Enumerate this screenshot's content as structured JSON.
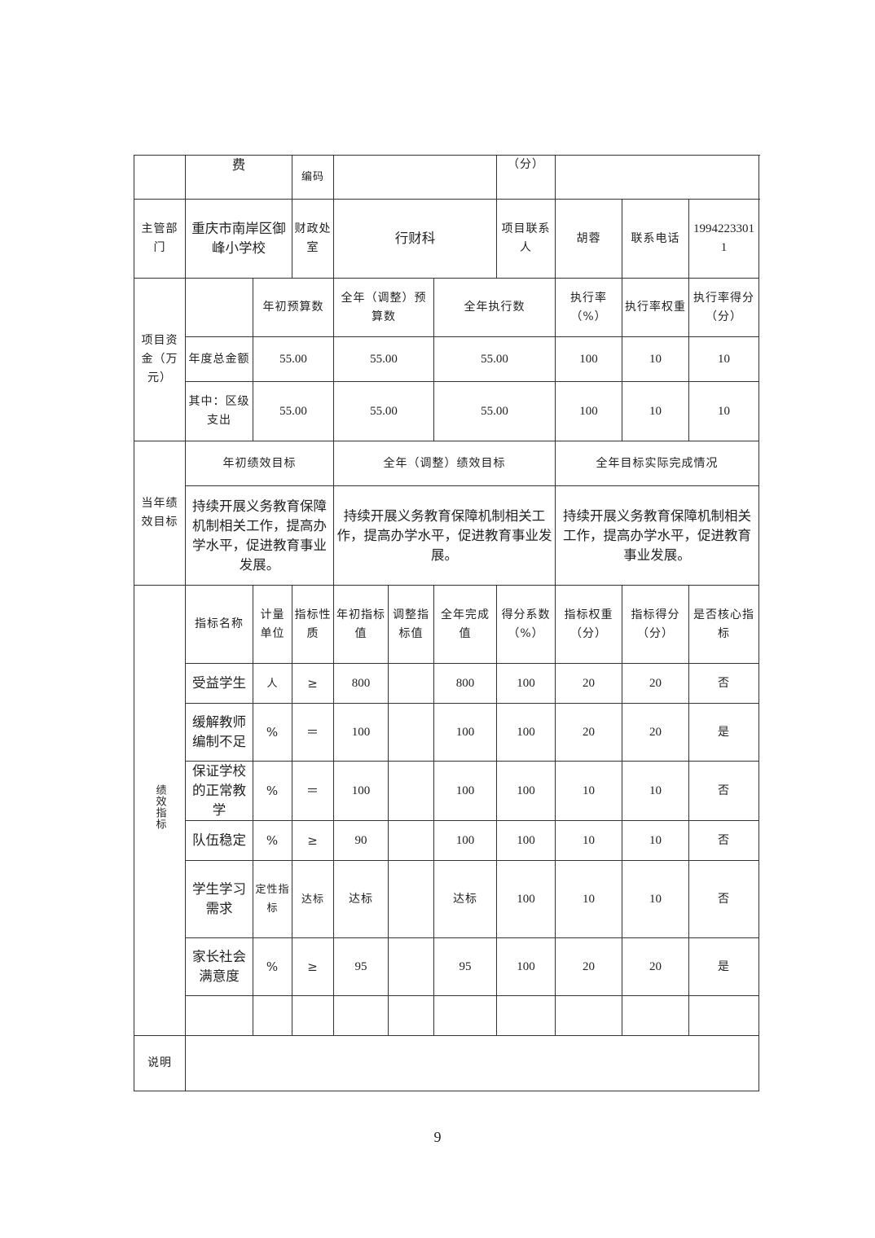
{
  "header_row": {
    "fee": "费",
    "code_label": "编码",
    "score_unit": "（分）"
  },
  "info_row": {
    "dept_label": "主管部门",
    "dept": "重庆市南岸区御峰小学校",
    "finance_office_label": "财政处室",
    "finance_office": "行财科",
    "contact_label": "项目联系人",
    "contact": "胡蓉",
    "phone_label": "联系电话",
    "phone": "19942233011"
  },
  "funds": {
    "label": "项目资金（万元）",
    "headers": [
      "年初预算数",
      "全年（调整）预算数",
      "全年执行数",
      "执行率（%）",
      "执行率权重",
      "执行率得分（分）"
    ],
    "rows": [
      {
        "label": "年度总金额",
        "values": [
          "55.00",
          "55.00",
          "55.00",
          "100",
          "10",
          "10"
        ]
      },
      {
        "label": "其中：区级支出",
        "values": [
          "55.00",
          "55.00",
          "55.00",
          "100",
          "10",
          "10"
        ]
      }
    ]
  },
  "goals": {
    "label": "当年绩效目标",
    "headers": [
      "年初绩效目标",
      "全年（调整）绩效目标",
      "全年目标实际完成情况"
    ],
    "values": [
      "持续开展义务教育保障机制相关工作，提高办学水平，促进教育事业发展。",
      "持续开展义务教育保障机制相关工作，提高办学水平，促进教育事业发展。",
      "持续开展义务教育保障机制相关工作，提高办学水平，促进教育事业发展。"
    ]
  },
  "indicators": {
    "label": "绩效指标",
    "headers": [
      "指标名称",
      "计量单位",
      "指标性质",
      "年初指标值",
      "调整指标值",
      "全年完成值",
      "得分系数（%）",
      "指标权重（分）",
      "指标得分（分）",
      "是否核心指标"
    ],
    "rows": [
      [
        "受益学生",
        "人",
        "≥",
        "800",
        "",
        "800",
        "100",
        "20",
        "20",
        "否"
      ],
      [
        "缓解教师编制不足",
        "%",
        "＝",
        "100",
        "",
        "100",
        "100",
        "20",
        "20",
        "是"
      ],
      [
        "保证学校的正常教学",
        "%",
        "＝",
        "100",
        "",
        "100",
        "100",
        "10",
        "10",
        "否"
      ],
      [
        "队伍稳定",
        "%",
        "≥",
        "90",
        "",
        "100",
        "100",
        "10",
        "10",
        "否"
      ],
      [
        "学生学习需求",
        "定性指标",
        "达标",
        "达标",
        "",
        "达标",
        "100",
        "10",
        "10",
        "否"
      ],
      [
        "家长社会满意度",
        "%",
        "≥",
        "95",
        "",
        "95",
        "100",
        "20",
        "20",
        "是"
      ],
      [
        "",
        "",
        "",
        "",
        "",
        "",
        "",
        "",
        "",
        ""
      ]
    ]
  },
  "notes": {
    "label": "说明",
    "value": ""
  },
  "page_number": "9"
}
